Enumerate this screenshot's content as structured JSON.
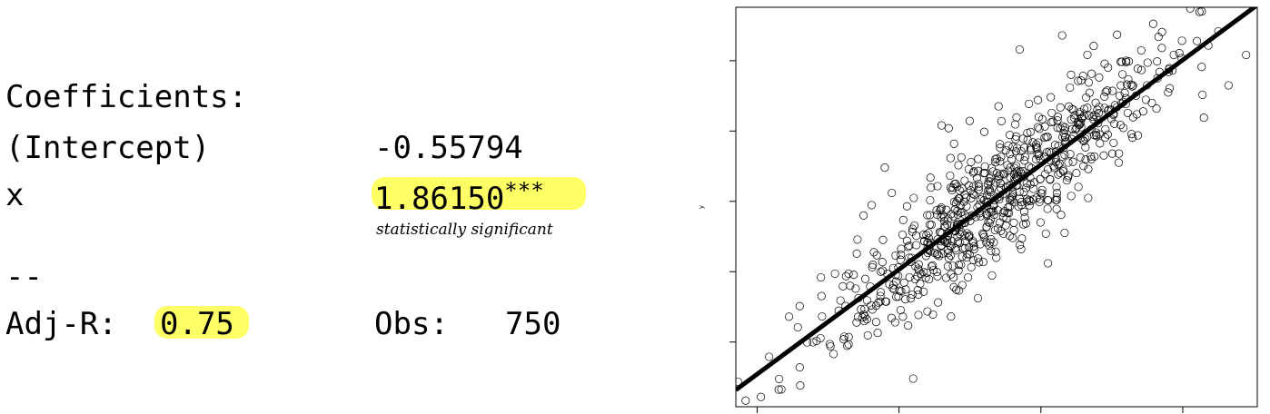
{
  "regression_table": {
    "header": "Coefficients:",
    "intercept_label": "(Intercept)",
    "intercept_value": "-0.55794",
    "x_label": "x",
    "x_value": "1.86150",
    "x_stars": "***",
    "annotation": "statistically significant",
    "separator": "--",
    "adjr_label": "Adj-R:",
    "adjr_value": "0.75",
    "obs_label": "Obs:",
    "obs_value": "750"
  },
  "colors": {
    "highlight": "#ffff66",
    "points": "#000000",
    "line": "#000000"
  },
  "chart_data": {
    "type": "scatter",
    "title": "",
    "xlabel": "",
    "ylabel": "y",
    "xlim": [
      -3.3,
      4.05
    ],
    "ylim": [
      -7.3,
      6.9
    ],
    "xticks": [
      -3,
      -1,
      1,
      3
    ],
    "yticks": [
      -5,
      -2.5,
      0,
      2.5,
      5
    ],
    "n_points": 750,
    "point_sd": 1.1,
    "regression_line": {
      "intercept": -0.55794,
      "slope": 1.8615
    },
    "sample_points": [
      [
        -2.55,
        -4.1
      ],
      [
        -2.4,
        -5.9
      ],
      [
        -2.1,
        -2.7
      ],
      [
        -1.5,
        -0.5
      ],
      [
        -1.2,
        1.2
      ],
      [
        -0.4,
        2.7
      ],
      [
        -0.3,
        2.6
      ],
      [
        0.7,
        5.4
      ],
      [
        1.3,
        5.9
      ],
      [
        2.8,
        4.6
      ],
      [
        2.1,
        1.7
      ],
      [
        1.1,
        -2.2
      ],
      [
        -0.8,
        -6.3
      ],
      [
        3.2,
        5.7
      ]
    ]
  }
}
